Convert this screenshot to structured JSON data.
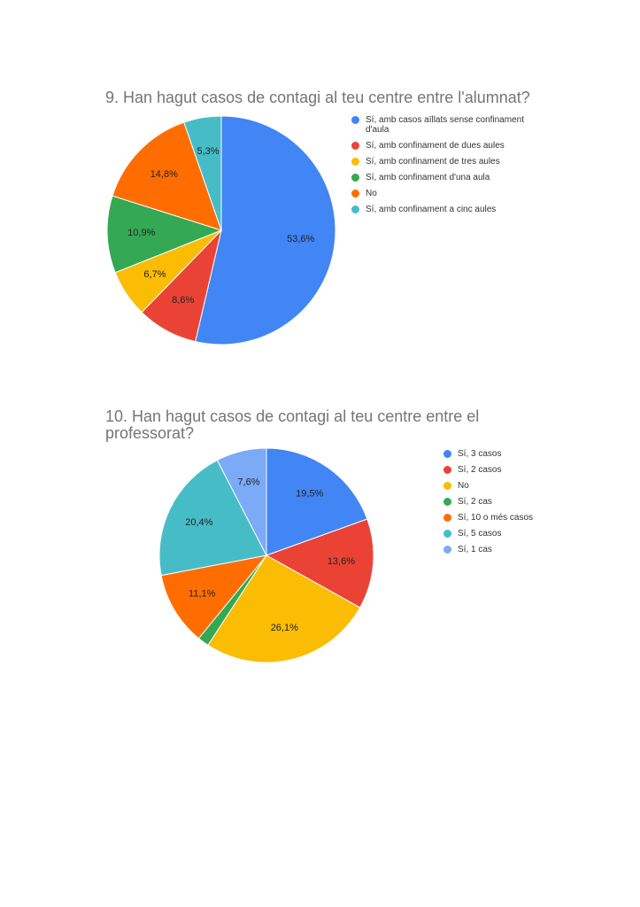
{
  "chart_data": [
    {
      "type": "pie",
      "title": "9. Han hagut casos de contagi al teu centre entre l'alumnat?",
      "legend_position": "right",
      "slices": [
        {
          "label": "Sí, amb casos aïllats sense confinament d'aula",
          "value": 53.6,
          "display": "53,6%",
          "color": "#4285f4"
        },
        {
          "label": "Sí, amb confinament de dues aules",
          "value": 8.6,
          "display": "8,6%",
          "color": "#ea4335"
        },
        {
          "label": "Sí, amb confinament de tres aules",
          "value": 6.7,
          "display": "6,7%",
          "color": "#fbbc04"
        },
        {
          "label": "Sí, amb confinament d'una aula",
          "value": 10.9,
          "display": "10,9%",
          "color": "#34a853"
        },
        {
          "label": "No",
          "value": 14.8,
          "display": "14,8%",
          "color": "#ff6d01"
        },
        {
          "label": "Sí, amb confinament a cinc aules",
          "value": 5.3,
          "display": "5,3%",
          "color": "#46bdc6"
        }
      ],
      "slice_order": [
        0,
        1,
        2,
        3,
        4,
        5
      ]
    },
    {
      "type": "pie",
      "title": "10. Han hagut casos de contagi al teu centre entre el professorat?",
      "legend_position": "right",
      "slices": [
        {
          "label": "Sí, 3 casos",
          "value": 19.5,
          "display": "19,5%",
          "color": "#4285f4"
        },
        {
          "label": "Sí, 2 casos",
          "value": 13.6,
          "display": "13,6%",
          "color": "#ea4335"
        },
        {
          "label": "No",
          "value": 26.1,
          "display": "26,1%",
          "color": "#fbbc04"
        },
        {
          "label": "Sí, 2 cas",
          "value": 1.7,
          "display": "",
          "color": "#34a853"
        },
        {
          "label": "Sí, 10 o més casos",
          "value": 11.1,
          "display": "11,1%",
          "color": "#ff6d01"
        },
        {
          "label": "Sí, 5 casos",
          "value": 20.4,
          "display": "20,4%",
          "color": "#46bdc6"
        },
        {
          "label": "Sí, 1 cas",
          "value": 7.6,
          "display": "7,6%",
          "color": "#7baaf7"
        }
      ],
      "slice_order": [
        0,
        1,
        2,
        3,
        4,
        5,
        6
      ]
    }
  ]
}
